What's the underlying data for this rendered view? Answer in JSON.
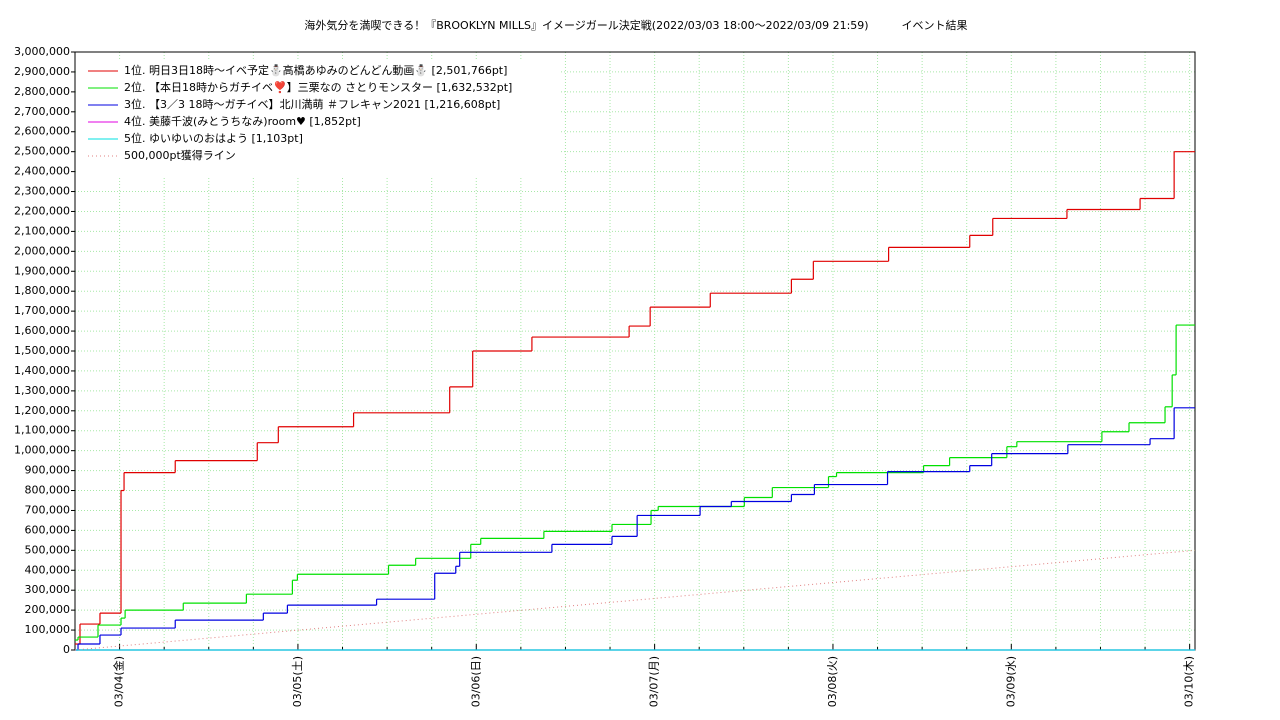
{
  "chart_data": {
    "type": "line",
    "title": "海外気分を満喫できる！『BROOKLYN MILLS』イメージガール決定戦(2022/03/03 18:00～2022/03/09 21:59)　　　イベント結果",
    "xlim": [
      0.75,
      7.03
    ],
    "xticks": [
      {
        "value": 1,
        "label": "03/04(金)"
      },
      {
        "value": 2,
        "label": "03/05(土)"
      },
      {
        "value": 3,
        "label": "03/06(日)"
      },
      {
        "value": 4,
        "label": "03/07(月)"
      },
      {
        "value": 5,
        "label": "03/08(火)"
      },
      {
        "value": 6,
        "label": "03/09(水)"
      },
      {
        "value": 7,
        "label": "03/10(木)"
      }
    ],
    "ylim": [
      0,
      3000000
    ],
    "yticks": [
      0,
      {
        "value": 100000,
        "label": "100,000"
      },
      {
        "value": 200000,
        "label": "200,000"
      },
      {
        "value": 300000,
        "label": "300,000"
      },
      {
        "value": 400000,
        "label": "400,000"
      },
      {
        "value": 500000,
        "label": "500,000"
      },
      {
        "value": 600000,
        "label": "600,000"
      },
      {
        "value": 700000,
        "label": "700,000"
      },
      {
        "value": 800000,
        "label": "800,000"
      },
      {
        "value": 900000,
        "label": "900,000"
      },
      {
        "value": 1000000,
        "label": "1,000,000"
      },
      {
        "value": 1100000,
        "label": "1,100,000"
      },
      {
        "value": 1200000,
        "label": "1,200,000"
      },
      {
        "value": 1300000,
        "label": "1,300,000"
      },
      {
        "value": 1400000,
        "label": "1,400,000"
      },
      {
        "value": 1500000,
        "label": "1,500,000"
      },
      {
        "value": 1600000,
        "label": "1,600,000"
      },
      {
        "value": 1700000,
        "label": "1,700,000"
      },
      {
        "value": 1800000,
        "label": "1,800,000"
      },
      {
        "value": 1900000,
        "label": "1,900,000"
      },
      {
        "value": 2000000,
        "label": "2,000,000"
      },
      {
        "value": 2100000,
        "label": "2,100,000"
      },
      {
        "value": 2200000,
        "label": "2,200,000"
      },
      {
        "value": 2300000,
        "label": "2,300,000"
      },
      {
        "value": 2400000,
        "label": "2,400,000"
      },
      {
        "value": 2500000,
        "label": "2,500,000"
      },
      {
        "value": 2600000,
        "label": "2,600,000"
      },
      {
        "value": 2700000,
        "label": "2,700,000"
      },
      {
        "value": 2800000,
        "label": "2,800,000"
      },
      {
        "value": 2900000,
        "label": "2,900,000"
      },
      {
        "value": 3000000,
        "label": "3,000,000"
      }
    ],
    "grid": true,
    "legend": "upper left",
    "series": [
      {
        "name": "1位. 明日3日18時〜イベ予定⛄高橋あゆみのどんどん動画⛄ [2,501,766pt]",
        "color": "#e00000",
        "drawstyle": "steps-post",
        "x": [
          0.75,
          0.778,
          0.89,
          1.008,
          1.025,
          1.312,
          1.772,
          1.89,
          2.312,
          2.851,
          2.98,
          3.312,
          3.857,
          3.975,
          4.312,
          4.767,
          4.89,
          5.312,
          5.767,
          5.896,
          6.312,
          6.722,
          6.913,
          7.03
        ],
        "values": [
          30000,
          130000,
          185000,
          800000,
          890000,
          950000,
          1040000,
          1120000,
          1190000,
          1320000,
          1500000,
          1570000,
          1625000,
          1720000,
          1790000,
          1860000,
          1950000,
          2020000,
          2080000,
          2165000,
          2210000,
          2265000,
          2500000,
          2500000
        ]
      },
      {
        "name": "2位. 【本日18時からガチイベ❣️】三栗なの さとりモンスター [1,632,532pt]",
        "color": "#00e000",
        "drawstyle": "steps-post",
        "x": [
          0.75,
          0.767,
          0.879,
          1.008,
          1.031,
          1.357,
          1.711,
          1.969,
          1.997,
          2.508,
          2.66,
          2.969,
          3.025,
          3.379,
          3.761,
          3.98,
          4.02,
          4.503,
          4.66,
          4.975,
          5.02,
          5.508,
          5.654,
          5.975,
          6.031,
          6.508,
          6.66,
          6.862,
          6.902,
          6.924,
          7.03
        ],
        "values": [
          50000,
          65000,
          125000,
          160000,
          200000,
          235000,
          280000,
          350000,
          380000,
          425000,
          460000,
          530000,
          560000,
          595000,
          630000,
          700000,
          720000,
          765000,
          815000,
          870000,
          890000,
          925000,
          965000,
          1020000,
          1045000,
          1095000,
          1140000,
          1220000,
          1380000,
          1630000,
          1630000
        ]
      },
      {
        "name": "3位. 【3／3 18時〜ガチイベ】北川満萌 ＃フレキャン2021 [1,216,608pt]",
        "color": "#0000e0",
        "drawstyle": "steps-post",
        "x": [
          0.75,
          0.767,
          0.89,
          1.008,
          1.312,
          1.806,
          1.941,
          2.441,
          2.767,
          2.885,
          2.907,
          3.424,
          3.761,
          3.902,
          4.255,
          4.43,
          4.767,
          4.896,
          5.306,
          5.767,
          5.89,
          6.317,
          6.778,
          6.913,
          7.03
        ],
        "values": [
          0,
          30000,
          75000,
          110000,
          150000,
          185000,
          225000,
          255000,
          385000,
          420000,
          490000,
          530000,
          570000,
          675000,
          720000,
          745000,
          780000,
          830000,
          895000,
          925000,
          985000,
          1030000,
          1060000,
          1215000,
          1215000
        ]
      },
      {
        "name": "4位. 美藤千波(みとうちなみ)room♥ [1,852pt]",
        "color": "#e000e0",
        "drawstyle": "steps-post",
        "x": [
          0.75,
          7.03
        ],
        "values": [
          0,
          1852
        ]
      },
      {
        "name": "5位. ゆいゆいのおはよう [1,103pt]",
        "color": "#00e0e0",
        "drawstyle": "steps-post",
        "x": [
          0.75,
          7.03
        ],
        "values": [
          0,
          1103
        ]
      },
      {
        "name": "500,000pt獲得ライン",
        "color": "#e08080",
        "linestyle": "dotted",
        "x": [
          0.75,
          7.03
        ],
        "values": [
          0,
          500000
        ]
      }
    ]
  }
}
